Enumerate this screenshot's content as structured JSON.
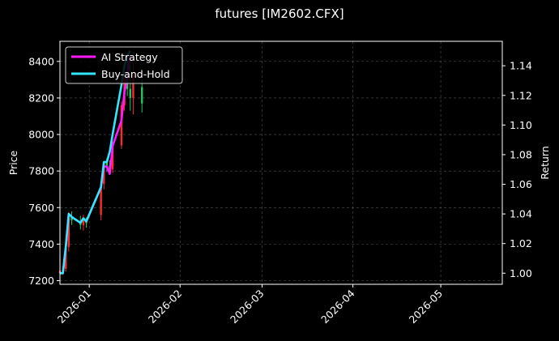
{
  "chart_data": {
    "type": "line",
    "title": "futures [IM2602.CFX]",
    "ylabel_left": "Price",
    "ylabel_right": "Return",
    "xlabel": "",
    "xlim": [
      "2025-12-22",
      "2026-05-22"
    ],
    "ylim_left": [
      7180,
      8510
    ],
    "ylim_right": [
      0.9925,
      1.1565
    ],
    "x_tick_labels": [
      "2026-01",
      "2026-02",
      "2026-03",
      "2026-04",
      "2026-05"
    ],
    "x_ticks": [
      "2026-01-01",
      "2026-02-01",
      "2026-03-01",
      "2026-04-01",
      "2026-05-01"
    ],
    "y_left_ticks": [
      7200,
      7400,
      7600,
      7800,
      8000,
      8200,
      8400
    ],
    "y_right_ticks": [
      1.0,
      1.02,
      1.04,
      1.06,
      1.08,
      1.1,
      1.12,
      1.14
    ],
    "grid": true,
    "legend_position": "upper-left",
    "colors": {
      "background": "#000000",
      "ai_strategy": "#ff1aff",
      "buy_and_hold": "#33e6ff",
      "candle_up": "#ff2a2a",
      "candle_down": "#22c55e",
      "grid": "#555555",
      "axis": "#ffffff"
    },
    "candles": [
      {
        "date": "2025-12-22",
        "open": 7240,
        "high": 7265,
        "low": 7228,
        "close": 7255
      },
      {
        "date": "2025-12-23",
        "open": 7245,
        "high": 7270,
        "low": 7232,
        "close": 7258
      },
      {
        "date": "2025-12-24",
        "open": 7265,
        "high": 7410,
        "low": 7250,
        "close": 7395
      },
      {
        "date": "2025-12-25",
        "open": 7385,
        "high": 7575,
        "low": 7360,
        "close": 7545
      },
      {
        "date": "2025-12-26",
        "open": 7545,
        "high": 7580,
        "low": 7505,
        "close": 7530
      },
      {
        "date": "2025-12-29",
        "open": 7525,
        "high": 7555,
        "low": 7480,
        "close": 7505
      },
      {
        "date": "2025-12-30",
        "open": 7505,
        "high": 7560,
        "low": 7475,
        "close": 7530
      },
      {
        "date": "2025-12-31",
        "open": 7530,
        "high": 7545,
        "low": 7490,
        "close": 7515
      },
      {
        "date": "2026-01-05",
        "open": 7560,
        "high": 7740,
        "low": 7530,
        "close": 7720
      },
      {
        "date": "2026-01-06",
        "open": 7730,
        "high": 7855,
        "low": 7700,
        "close": 7845
      },
      {
        "date": "2026-01-07",
        "open": 7845,
        "high": 7870,
        "low": 7795,
        "close": 7830
      },
      {
        "date": "2026-01-08",
        "open": 7830,
        "high": 7860,
        "low": 7780,
        "close": 7800
      },
      {
        "date": "2026-01-09",
        "open": 7810,
        "high": 7960,
        "low": 7790,
        "close": 7935
      },
      {
        "date": "2026-01-12",
        "open": 7940,
        "high": 8180,
        "low": 7920,
        "close": 8160
      },
      {
        "date": "2026-01-13",
        "open": 8160,
        "high": 8340,
        "low": 8130,
        "close": 8310
      },
      {
        "date": "2026-01-14",
        "open": 8310,
        "high": 8440,
        "low": 8210,
        "close": 8250
      },
      {
        "date": "2026-01-15",
        "open": 8250,
        "high": 8390,
        "low": 8130,
        "close": 8200
      },
      {
        "date": "2026-01-16",
        "open": 8200,
        "high": 8420,
        "low": 8110,
        "close": 8330
      },
      {
        "date": "2026-01-19",
        "open": 8260,
        "high": 8300,
        "low": 8120,
        "close": 8170
      }
    ],
    "series": [
      {
        "name": "AI Strategy",
        "axis": "right",
        "x": [
          "2025-12-22",
          "2025-12-23",
          "2025-12-24",
          "2025-12-25",
          "2025-12-26",
          "2025-12-29",
          "2025-12-30",
          "2025-12-31",
          "2026-01-05",
          "2026-01-06",
          "2026-01-07",
          "2026-01-08",
          "2026-01-09",
          "2026-01-12",
          "2026-01-13",
          "2026-01-14",
          "2026-01-15"
        ],
        "values": [
          1.0,
          1.0,
          1.018,
          1.04,
          1.038,
          1.034,
          1.037,
          1.035,
          1.058,
          1.072,
          1.072,
          1.067,
          1.086,
          1.103,
          1.122,
          1.132,
          1.147
        ]
      },
      {
        "name": "Buy-and-Hold",
        "axis": "right",
        "x": [
          "2025-12-22",
          "2025-12-23",
          "2025-12-24",
          "2025-12-25",
          "2025-12-26",
          "2025-12-29",
          "2025-12-30",
          "2025-12-31",
          "2026-01-05",
          "2026-01-06",
          "2026-01-07",
          "2026-01-08",
          "2026-01-09",
          "2026-01-12",
          "2026-01-13",
          "2026-01-14",
          "2026-01-15"
        ],
        "values": [
          1.0,
          1.0,
          1.018,
          1.04,
          1.038,
          1.034,
          1.037,
          1.035,
          1.058,
          1.075,
          1.075,
          1.082,
          1.094,
          1.127,
          1.14,
          1.147,
          1.15
        ]
      }
    ]
  }
}
